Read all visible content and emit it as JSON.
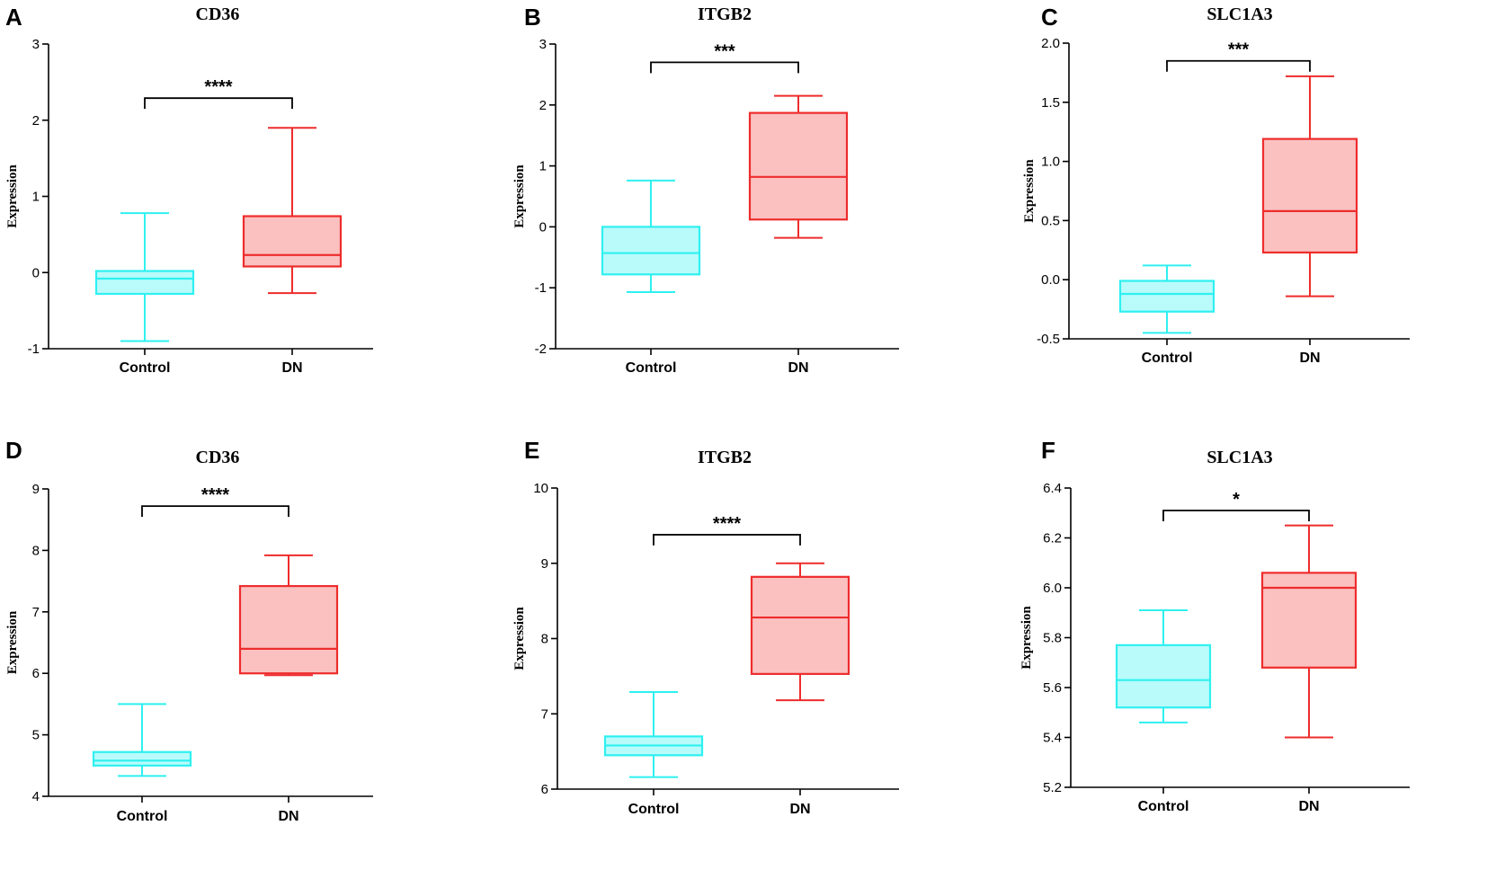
{
  "colors": {
    "control_stroke": "#2ff0f0",
    "control_fill": "#b9fbfb",
    "dn_stroke": "#ee2c2c",
    "dn_fill": "#fbc1c1",
    "axis": "#000000"
  },
  "chart_data": [
    {
      "letter": "A",
      "type": "box",
      "title": "CD36",
      "ylabel": "Expression",
      "categories": [
        "Control",
        "DN"
      ],
      "ylim": [
        -1,
        3
      ],
      "yticks": [
        "-1",
        "0",
        "1",
        "2",
        "3"
      ],
      "ytick_values": [
        -1,
        0,
        1,
        2,
        3
      ],
      "boxes": [
        {
          "name": "Control",
          "min": -0.9,
          "q1": -0.28,
          "median": -0.08,
          "q3": 0.02,
          "max": 0.78
        },
        {
          "name": "DN",
          "min": -0.27,
          "q1": 0.08,
          "median": 0.23,
          "q3": 0.74,
          "max": 1.9
        }
      ],
      "significance": "****",
      "bracket_y": 2.29
    },
    {
      "letter": "B",
      "type": "box",
      "title": "ITGB2",
      "ylabel": "Expression",
      "categories": [
        "Control",
        "DN"
      ],
      "ylim": [
        -2,
        3
      ],
      "yticks": [
        "-2",
        "-1",
        "0",
        "1",
        "2",
        "3"
      ],
      "ytick_values": [
        -2,
        -1,
        0,
        1,
        2,
        3
      ],
      "boxes": [
        {
          "name": "Control",
          "min": -1.07,
          "q1": -0.78,
          "median": -0.43,
          "q3": 0.0,
          "max": 0.76
        },
        {
          "name": "DN",
          "min": -0.18,
          "q1": 0.12,
          "median": 0.82,
          "q3": 1.87,
          "max": 2.15
        }
      ],
      "significance": "***",
      "bracket_y": 2.7
    },
    {
      "letter": "C",
      "type": "box",
      "title": "SLC1A3",
      "ylabel": "Expression",
      "categories": [
        "Control",
        "DN"
      ],
      "ylim": [
        -0.5,
        2.0
      ],
      "yticks": [
        "-0.5",
        "0.0",
        "0.5",
        "1.0",
        "1.5",
        "2.0"
      ],
      "ytick_values": [
        -0.5,
        0.0,
        0.5,
        1.0,
        1.5,
        2.0
      ],
      "boxes": [
        {
          "name": "Control",
          "min": -0.45,
          "q1": -0.27,
          "median": -0.12,
          "q3": -0.01,
          "max": 0.12
        },
        {
          "name": "DN",
          "min": -0.14,
          "q1": 0.23,
          "median": 0.58,
          "q3": 1.19,
          "max": 1.72
        }
      ],
      "significance": "***",
      "bracket_y": 1.85
    },
    {
      "letter": "D",
      "type": "box",
      "title": "CD36",
      "ylabel": "Expression",
      "categories": [
        "Control",
        "DN"
      ],
      "ylim": [
        4,
        9
      ],
      "yticks": [
        "4",
        "5",
        "6",
        "7",
        "8",
        "9"
      ],
      "ytick_values": [
        4,
        5,
        6,
        7,
        8,
        9
      ],
      "boxes": [
        {
          "name": "Control",
          "min": 4.33,
          "q1": 4.5,
          "median": 4.58,
          "q3": 4.72,
          "max": 5.5
        },
        {
          "name": "DN",
          "min": 5.97,
          "q1": 6.0,
          "median": 6.4,
          "q3": 7.42,
          "max": 7.92
        }
      ],
      "significance": "****",
      "bracket_y": 8.72
    },
    {
      "letter": "E",
      "type": "box",
      "title": "ITGB2",
      "ylabel": "Expression",
      "categories": [
        "Control",
        "DN"
      ],
      "ylim": [
        6,
        10
      ],
      "yticks": [
        "6",
        "7",
        "8",
        "9",
        "10"
      ],
      "ytick_values": [
        6,
        7,
        8,
        9,
        10
      ],
      "boxes": [
        {
          "name": "Control",
          "min": 6.16,
          "q1": 6.45,
          "median": 6.58,
          "q3": 6.7,
          "max": 7.29
        },
        {
          "name": "DN",
          "min": 7.18,
          "q1": 7.53,
          "median": 8.28,
          "q3": 8.82,
          "max": 9.0
        }
      ],
      "significance": "****",
      "bracket_y": 9.38
    },
    {
      "letter": "F",
      "type": "box",
      "title": "SLC1A3",
      "ylabel": "Expression",
      "categories": [
        "Control",
        "DN"
      ],
      "ylim": [
        5.2,
        6.4
      ],
      "yticks": [
        "5.2",
        "5.4",
        "5.6",
        "5.8",
        "6.0",
        "6.2",
        "6.4"
      ],
      "ytick_values": [
        5.2,
        5.4,
        5.6,
        5.8,
        6.0,
        6.2,
        6.4
      ],
      "boxes": [
        {
          "name": "Control",
          "min": 5.46,
          "q1": 5.52,
          "median": 5.63,
          "q3": 5.77,
          "max": 5.91
        },
        {
          "name": "DN",
          "min": 5.4,
          "q1": 5.68,
          "median": 6.0,
          "q3": 6.06,
          "max": 6.25
        }
      ],
      "significance": "*",
      "bracket_y": 6.31
    }
  ]
}
